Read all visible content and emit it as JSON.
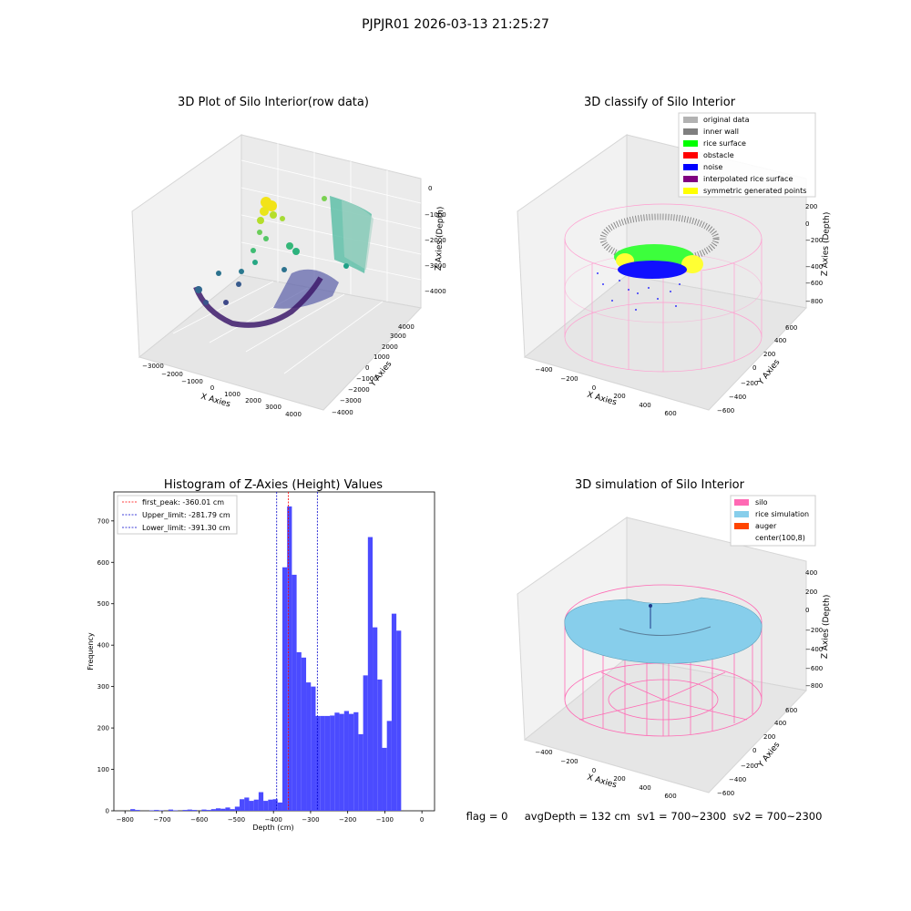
{
  "figure": {
    "suptitle": "PJPJR01 2026-03-13 21:25:27",
    "status_line": "flag = 0     avgDepth = 132 cm  sv1 = 700~2300  sv2 = 700~2300"
  },
  "colors": {
    "hist_bar": "#4b4bff",
    "first_peak": "#ff0000",
    "limits": "#0000cc",
    "original": "#b2b2b2",
    "inner_wall": "#7f7f7f",
    "rice_surface": "#00ff00",
    "obstacle": "#ff0000",
    "noise": "#0000ff",
    "interp": "#800080",
    "symmetric": "#ffff00",
    "silo": "#ff69b4",
    "rice_sim": "#87ceeb",
    "auger": "#ff4500"
  },
  "chart_data": [
    {
      "type": "scatter3d",
      "title": "3D Plot of Silo Interior(row data)",
      "xlabel": "X Axies",
      "ylabel": "Y Axies",
      "zlabel": "Z Axies (Depth)",
      "xticks": [
        "−3000",
        "−2000",
        "−1000",
        "0",
        "1000",
        "2000",
        "3000",
        "4000"
      ],
      "yticks": [
        "−4000",
        "−3000",
        "−2000",
        "−1000",
        "0",
        "1000",
        "2000",
        "3000",
        "4000"
      ],
      "zticks": [
        "0",
        "−1000",
        "−2000",
        "−3000",
        "−4000"
      ]
    },
    {
      "type": "scatter3d",
      "title": "3D classify of Silo Interior",
      "xlabel": "X Axies",
      "ylabel": "Y Axies",
      "zlabel": "Z Axies (Depth)",
      "xticks": [
        "−400",
        "−200",
        "0",
        "200",
        "400",
        "600"
      ],
      "yticks": [
        "−600",
        "−400",
        "−200",
        "0",
        "200",
        "400",
        "600"
      ],
      "zticks": [
        "200",
        "0",
        "−200",
        "−400",
        "−600",
        "−800"
      ],
      "legend": [
        {
          "label": "original data",
          "color": "#b2b2b2"
        },
        {
          "label": "inner wall",
          "color": "#7f7f7f"
        },
        {
          "label": "rice surface",
          "color": "#00ff00"
        },
        {
          "label": "obstacle",
          "color": "#ff0000"
        },
        {
          "label": "noise",
          "color": "#0000ff"
        },
        {
          "label": "interpolated rice surface",
          "color": "#800080"
        },
        {
          "label": "symmetric generated points",
          "color": "#ffff00"
        }
      ]
    },
    {
      "type": "bar",
      "title": "Histogram of Z-Axies (Height) Values",
      "xlabel": "Depth (cm)",
      "ylabel": "Frequency",
      "xlim": [
        -830,
        34
      ],
      "ylim": [
        0,
        770
      ],
      "xticks": [
        -800,
        -700,
        -600,
        -500,
        -400,
        -300,
        -200,
        -100,
        0
      ],
      "xtick_labels": [
        "−800",
        "−700",
        "−600",
        "−500",
        "−400",
        "−300",
        "−200",
        "−100",
        "0"
      ],
      "yticks": [
        0,
        100,
        200,
        300,
        400,
        500,
        600,
        700
      ],
      "ytick_labels": [
        "0",
        "100",
        "200",
        "300",
        "400",
        "500",
        "600",
        "700"
      ],
      "bin_width": 12.8,
      "bins": [
        {
          "x": -785.6,
          "h": 4
        },
        {
          "x": -772.8,
          "h": 2
        },
        {
          "x": -734.4,
          "h": 1
        },
        {
          "x": -721.6,
          "h": 2
        },
        {
          "x": -708.8,
          "h": 1
        },
        {
          "x": -683.2,
          "h": 3
        },
        {
          "x": -670.4,
          "h": 1
        },
        {
          "x": -644.8,
          "h": 2
        },
        {
          "x": -632.0,
          "h": 3
        },
        {
          "x": -619.2,
          "h": 2
        },
        {
          "x": -593.6,
          "h": 3
        },
        {
          "x": -580.8,
          "h": 2
        },
        {
          "x": -568.0,
          "h": 4
        },
        {
          "x": -555.2,
          "h": 6
        },
        {
          "x": -542.4,
          "h": 5
        },
        {
          "x": -529.6,
          "h": 8
        },
        {
          "x": -516.8,
          "h": 4
        },
        {
          "x": -504.0,
          "h": 10
        },
        {
          "x": -491.2,
          "h": 28
        },
        {
          "x": -478.4,
          "h": 32
        },
        {
          "x": -465.6,
          "h": 24
        },
        {
          "x": -452.8,
          "h": 27
        },
        {
          "x": -440.0,
          "h": 45
        },
        {
          "x": -427.2,
          "h": 24
        },
        {
          "x": -414.4,
          "h": 27
        },
        {
          "x": -401.6,
          "h": 28
        },
        {
          "x": -388.8,
          "h": 20
        },
        {
          "x": -376.0,
          "h": 588
        },
        {
          "x": -363.2,
          "h": 735
        },
        {
          "x": -350.4,
          "h": 570
        },
        {
          "x": -337.6,
          "h": 383
        },
        {
          "x": -324.8,
          "h": 370
        },
        {
          "x": -312.0,
          "h": 310
        },
        {
          "x": -299.2,
          "h": 300
        },
        {
          "x": -286.4,
          "h": 229
        },
        {
          "x": -273.6,
          "h": 229
        },
        {
          "x": -260.8,
          "h": 229
        },
        {
          "x": -248.0,
          "h": 230
        },
        {
          "x": -235.2,
          "h": 237
        },
        {
          "x": -222.4,
          "h": 234
        },
        {
          "x": -209.6,
          "h": 241
        },
        {
          "x": -196.8,
          "h": 234
        },
        {
          "x": -184.0,
          "h": 238
        },
        {
          "x": -171.2,
          "h": 185
        },
        {
          "x": -158.4,
          "h": 327
        },
        {
          "x": -145.6,
          "h": 661
        },
        {
          "x": -132.8,
          "h": 443
        },
        {
          "x": -120.0,
          "h": 317
        },
        {
          "x": -107.2,
          "h": 152
        },
        {
          "x": -94.4,
          "h": 217
        },
        {
          "x": -81.6,
          "h": 476
        },
        {
          "x": -68.8,
          "h": 435
        }
      ],
      "vlines": [
        {
          "label": "first_peak: -360.01 cm",
          "x": -360.01,
          "color": "#ff0000"
        },
        {
          "label": "Upper_limit: -281.79 cm",
          "x": -281.79,
          "color": "#0000cc"
        },
        {
          "label": "Lower_limit: -391.30 cm",
          "x": -391.3,
          "color": "#0000cc"
        }
      ],
      "legend_position": "top-left"
    },
    {
      "type": "surface3d",
      "title": "3D simulation of Silo Interior",
      "xlabel": "X Axies",
      "ylabel": "Y Axies",
      "zlabel": "Z Axies (Depth)",
      "xticks": [
        "−400",
        "−200",
        "0",
        "200",
        "400",
        "600"
      ],
      "yticks": [
        "−600",
        "−400",
        "−200",
        "0",
        "200",
        "400",
        "600"
      ],
      "zticks": [
        "400",
        "200",
        "0",
        "−200",
        "−400",
        "−600",
        "−800"
      ],
      "legend": [
        {
          "label": "silo",
          "color": "#ff69b4"
        },
        {
          "label": "rice simulation",
          "color": "#87ceeb"
        },
        {
          "label": "auger",
          "color": "#ff4500"
        },
        {
          "label": "center(100,8)",
          "color": "#ffffff"
        }
      ]
    }
  ]
}
